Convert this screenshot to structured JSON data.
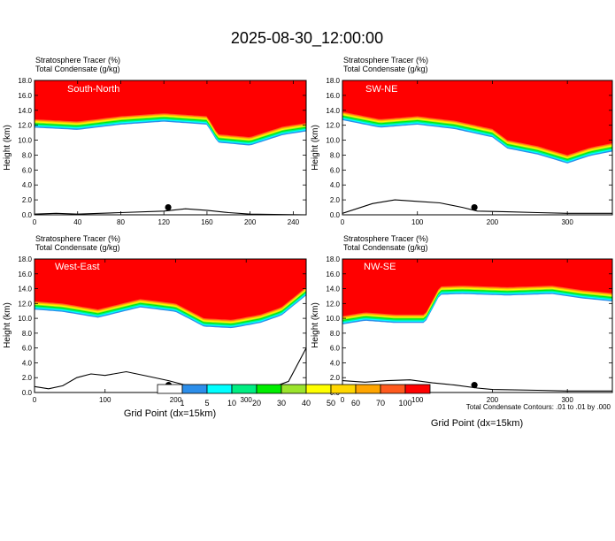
{
  "title": "2025-08-30_12:00:00",
  "colors": {
    "levels": [
      "#ffffff",
      "#2c8eea",
      "#00ffff",
      "#00ee82",
      "#00ee00",
      "#9be42c",
      "#ffff00",
      "#ffd700",
      "#ffa500",
      "#ff5a1e",
      "#ff0000"
    ],
    "terrain": "#000000"
  },
  "colorbar": {
    "labels": [
      "1",
      "5",
      "10",
      "20",
      "30",
      "40",
      "50",
      "60",
      "70",
      "100"
    ]
  },
  "footnote": "Total Condensate Contours: .01 to .01 by .000",
  "chart_data": [
    {
      "type": "heatmap",
      "region": "South-North",
      "header_line1": "Stratosphere Tracer   (%)",
      "header_line2": "Total Condensate   (g/kg)",
      "ylabel": "Height (km)",
      "xlabel": "",
      "xlim": [
        0,
        252
      ],
      "ylim": [
        0,
        18
      ],
      "xticks": [
        "0",
        "40",
        "80",
        "120",
        "160",
        "200",
        "240"
      ],
      "xtick_values": [
        0,
        40,
        80,
        120,
        160,
        200,
        240
      ],
      "yticks": [
        "0.0",
        "2.0",
        "4.0",
        "6.0",
        "8.0",
        "10.0",
        "12.0",
        "14.0",
        "16.0",
        "18.0"
      ],
      "tropopause_x": [
        0,
        40,
        80,
        120,
        160,
        170,
        200,
        230,
        252
      ],
      "tropopause_y": [
        12.8,
        12.5,
        13.2,
        13.6,
        13.2,
        10.8,
        10.4,
        11.8,
        12.3
      ],
      "terrain_x": [
        0,
        20,
        40,
        80,
        120,
        140,
        160,
        180,
        200,
        252
      ],
      "terrain_y": [
        0.1,
        0.2,
        0.1,
        0.3,
        0.5,
        0.8,
        0.6,
        0.3,
        0.1,
        0.0
      ],
      "marker": [
        124,
        1.0
      ]
    },
    {
      "type": "heatmap",
      "region": "SW-NE",
      "header_line1": "Stratosphere Tracer   (%)",
      "header_line2": "Total Condensate   (g/kg)",
      "ylabel": "Height (km)",
      "xlabel": "",
      "xlim": [
        0,
        360
      ],
      "ylim": [
        0,
        18
      ],
      "xticks": [
        "0",
        "100",
        "200",
        "300"
      ],
      "xtick_values": [
        0,
        100,
        200,
        300
      ],
      "yticks": [
        "0.0",
        "2.0",
        "4.0",
        "6.0",
        "8.0",
        "10.0",
        "12.0",
        "14.0",
        "16.0",
        "18.0"
      ],
      "tropopause_x": [
        0,
        50,
        100,
        150,
        200,
        220,
        260,
        300,
        330,
        360
      ],
      "tropopause_y": [
        13.8,
        12.8,
        13.2,
        12.6,
        11.5,
        10.0,
        9.2,
        8.0,
        9.0,
        9.6
      ],
      "terrain_x": [
        0,
        40,
        70,
        100,
        130,
        160,
        180,
        220,
        260,
        300,
        360
      ],
      "terrain_y": [
        0.2,
        1.5,
        2.0,
        1.8,
        1.6,
        1.0,
        0.5,
        0.4,
        0.3,
        0.2,
        0.2
      ],
      "marker": [
        176,
        1.0
      ]
    },
    {
      "type": "heatmap",
      "region": "West-East",
      "header_line1": "Stratosphere Tracer   (%)",
      "header_line2": "Total Condensate   (g/kg)",
      "ylabel": "Height (km)",
      "xlabel": "Grid Point (dx=15km)",
      "xlim": [
        0,
        385
      ],
      "ylim": [
        0,
        18
      ],
      "xticks": [
        "0",
        "100",
        "200",
        "300"
      ],
      "xtick_values": [
        0,
        100,
        200,
        300
      ],
      "yticks": [
        "0.0",
        "2.0",
        "4.0",
        "6.0",
        "8.0",
        "10.0",
        "12.0",
        "14.0",
        "16.0",
        "18.0"
      ],
      "tropopause_x": [
        0,
        40,
        90,
        150,
        200,
        240,
        280,
        320,
        350,
        385
      ],
      "tropopause_y": [
        12.3,
        12.0,
        11.2,
        12.6,
        12.0,
        10.0,
        9.8,
        10.5,
        11.5,
        14.2
      ],
      "terrain_x": [
        0,
        20,
        40,
        60,
        80,
        100,
        130,
        160,
        190,
        230,
        300,
        340,
        360,
        385
      ],
      "terrain_y": [
        0.8,
        0.5,
        0.9,
        2.0,
        2.5,
        2.3,
        2.8,
        2.2,
        1.6,
        0.6,
        0.4,
        0.8,
        1.5,
        6.0
      ],
      "marker": [
        190,
        1.0
      ]
    },
    {
      "type": "heatmap",
      "region": "NW-SE",
      "header_line1": "Stratosphere Tracer   (%)",
      "header_line2": "Total Condensate   (g/kg)",
      "ylabel": "Height (km)",
      "xlabel": "Grid Point (dx=15km)",
      "xlim": [
        0,
        360
      ],
      "ylim": [
        0,
        18
      ],
      "xticks": [
        "0",
        "100",
        "200",
        "300"
      ],
      "xtick_values": [
        0,
        100,
        200,
        300
      ],
      "yticks": [
        "0.0",
        "2.0",
        "4.0",
        "6.0",
        "8.0",
        "10.0",
        "12.0",
        "14.0",
        "16.0",
        "18.0"
      ],
      "tropopause_x": [
        0,
        30,
        70,
        110,
        130,
        160,
        220,
        280,
        320,
        360
      ],
      "tropopause_y": [
        10.3,
        10.8,
        10.5,
        10.5,
        14.3,
        14.4,
        14.2,
        14.4,
        13.8,
        13.4
      ],
      "terrain_x": [
        0,
        30,
        60,
        90,
        120,
        150,
        180,
        200,
        260,
        300,
        360
      ],
      "terrain_y": [
        1.6,
        1.4,
        1.6,
        1.7,
        1.3,
        1.0,
        0.6,
        0.4,
        0.3,
        0.2,
        0.2
      ],
      "marker": [
        176,
        1.0
      ]
    }
  ]
}
